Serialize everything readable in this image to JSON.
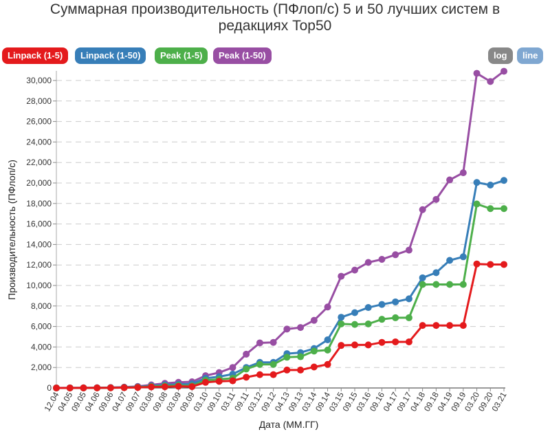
{
  "chart_data": {
    "type": "line",
    "title_line1": "Суммарная производительность (ПФлоп/с) 5 и 50 лучших систем в",
    "title_line2": "редакциях Top50",
    "xlabel": "Дата (ММ.ГГ)",
    "ylabel": "Производительность (ПФлоп/с)",
    "ylim": [
      0,
      31000
    ],
    "yticks": [
      0,
      2000,
      4000,
      6000,
      8000,
      10000,
      12000,
      14000,
      16000,
      18000,
      20000,
      22000,
      24000,
      26000,
      28000,
      30000
    ],
    "ytick_labels": [
      "0",
      "2,000",
      "4,000",
      "6,000",
      "8,000",
      "10,000",
      "12,000",
      "14,000",
      "16,000",
      "18,000",
      "20,000",
      "22,000",
      "24,000",
      "26,000",
      "28,000",
      "30,000"
    ],
    "categories": [
      "12.04",
      "04.05",
      "09.05",
      "04.06",
      "09.06",
      "04.07",
      "09.07",
      "03.08",
      "09.08",
      "03.09",
      "09.09",
      "03.10",
      "09.10",
      "03.11",
      "09.11",
      "03.12",
      "09.12",
      "04.13",
      "09.13",
      "03.14",
      "09.14",
      "03.15",
      "09.15",
      "03.16",
      "09.16",
      "04.17",
      "09.17",
      "04.18",
      "09.18",
      "04.19",
      "09.19",
      "03.20",
      "09.20",
      "03.21"
    ],
    "series": [
      {
        "name": "Peak (1-50)",
        "color": "#984ea3",
        "values": [
          5,
          10,
          15,
          25,
          40,
          80,
          150,
          300,
          450,
          550,
          600,
          1200,
          1500,
          2000,
          3300,
          4400,
          4450,
          5750,
          5900,
          6600,
          7900,
          10900,
          11500,
          12250,
          12550,
          13000,
          13450,
          17400,
          18400,
          20300,
          21000,
          30700,
          29900,
          30900
        ]
      },
      {
        "name": "Linpack (1-50)",
        "color": "#377eb8",
        "values": [
          3,
          6,
          10,
          18,
          30,
          55,
          100,
          200,
          300,
          350,
          400,
          950,
          1100,
          1350,
          2000,
          2500,
          2500,
          3350,
          3450,
          3850,
          4700,
          6900,
          7350,
          7850,
          8150,
          8400,
          8700,
          10750,
          11250,
          12450,
          12800,
          20050,
          19800,
          20250
        ]
      },
      {
        "name": "Peak (1-5)",
        "color": "#4daf4a",
        "values": [
          2,
          4,
          6,
          10,
          20,
          40,
          70,
          150,
          200,
          250,
          200,
          750,
          850,
          950,
          1850,
          2300,
          2300,
          3000,
          3050,
          3600,
          3700,
          6250,
          6200,
          6250,
          6700,
          6850,
          6850,
          10100,
          10100,
          10100,
          10100,
          17950,
          17500,
          17500
        ]
      },
      {
        "name": "Linpack (1-5)",
        "color": "#e41a1c",
        "values": [
          1,
          3,
          5,
          8,
          15,
          30,
          50,
          100,
          120,
          160,
          130,
          550,
          650,
          700,
          1050,
          1300,
          1300,
          1750,
          1750,
          2050,
          2300,
          4150,
          4200,
          4200,
          4450,
          4500,
          4500,
          6100,
          6100,
          6100,
          6100,
          12100,
          12050,
          12050
        ]
      }
    ]
  },
  "controls": {
    "linpack5": "Linpack (1-5)",
    "linpack50": "Linpack (1-50)",
    "peak5": "Peak (1-5)",
    "peak50": "Peak (1-50)",
    "log": "log",
    "line": "line"
  }
}
